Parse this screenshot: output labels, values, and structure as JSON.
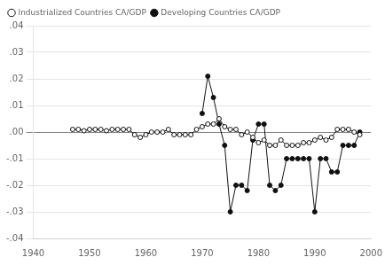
{
  "chart_data": {
    "type": "line",
    "x": [
      1947,
      1948,
      1949,
      1950,
      1951,
      1952,
      1953,
      1954,
      1955,
      1956,
      1957,
      1958,
      1959,
      1960,
      1961,
      1962,
      1963,
      1964,
      1965,
      1966,
      1967,
      1968,
      1969,
      1970,
      1971,
      1972,
      1973,
      1974,
      1975,
      1976,
      1977,
      1978,
      1979,
      1980,
      1981,
      1982,
      1983,
      1984,
      1985,
      1986,
      1987,
      1988,
      1989,
      1990,
      1991,
      1992,
      1993,
      1994,
      1995,
      1996,
      1997,
      1998
    ],
    "series": [
      {
        "name": "Industrialized Countries CA/GDP",
        "color": "#111111",
        "marker": "circle_open",
        "values": [
          0.001,
          0.001,
          0.0005,
          0.001,
          0.001,
          0.001,
          0.0005,
          0.001,
          0.001,
          0.001,
          0.001,
          -0.001,
          -0.002,
          -0.001,
          0.0,
          0.0,
          0.0,
          0.001,
          -0.001,
          -0.001,
          -0.001,
          -0.001,
          0.001,
          0.002,
          0.003,
          0.003,
          0.005,
          0.002,
          0.001,
          0.001,
          -0.001,
          0.0,
          -0.002,
          -0.004,
          -0.003,
          -0.005,
          -0.005,
          -0.003,
          -0.005,
          -0.005,
          -0.005,
          -0.004,
          -0.004,
          -0.003,
          -0.002,
          -0.003,
          -0.002,
          0.001,
          0.001,
          0.001,
          0.0,
          -0.001
        ]
      },
      {
        "name": "Developing Countries CA/GDP",
        "color": "#111111",
        "marker": "circle",
        "values": [
          null,
          null,
          null,
          null,
          null,
          null,
          null,
          null,
          null,
          null,
          null,
          null,
          null,
          null,
          null,
          null,
          null,
          null,
          null,
          null,
          null,
          null,
          null,
          0.007,
          0.021,
          0.013,
          0.003,
          -0.005,
          -0.03,
          -0.02,
          -0.02,
          -0.022,
          -0.003,
          0.003,
          0.003,
          -0.02,
          -0.022,
          -0.02,
          -0.01,
          -0.01,
          -0.01,
          -0.01,
          -0.01,
          -0.03,
          -0.01,
          -0.01,
          -0.015,
          -0.015,
          -0.005,
          -0.005,
          -0.005,
          0.0
        ]
      }
    ],
    "xlim": [
      1940,
      2000
    ],
    "xticks": [
      1940,
      1950,
      1960,
      1970,
      1980,
      1990,
      2000
    ],
    "ylim": [
      -0.04,
      0.04
    ],
    "yticks": [
      {
        "value": -0.04,
        "label": "-.04"
      },
      {
        "value": -0.03,
        "label": "-.03"
      },
      {
        "value": -0.02,
        "label": "-.02"
      },
      {
        "value": -0.01,
        "label": "-.01"
      },
      {
        "value": 0.0,
        "label": ".00"
      },
      {
        "value": 0.01,
        "label": ".01"
      },
      {
        "value": 0.02,
        "label": ".02"
      },
      {
        "value": 0.03,
        "label": ".03"
      },
      {
        "value": 0.04,
        "label": ".04"
      }
    ],
    "grid": "y",
    "legend": "upper left"
  }
}
